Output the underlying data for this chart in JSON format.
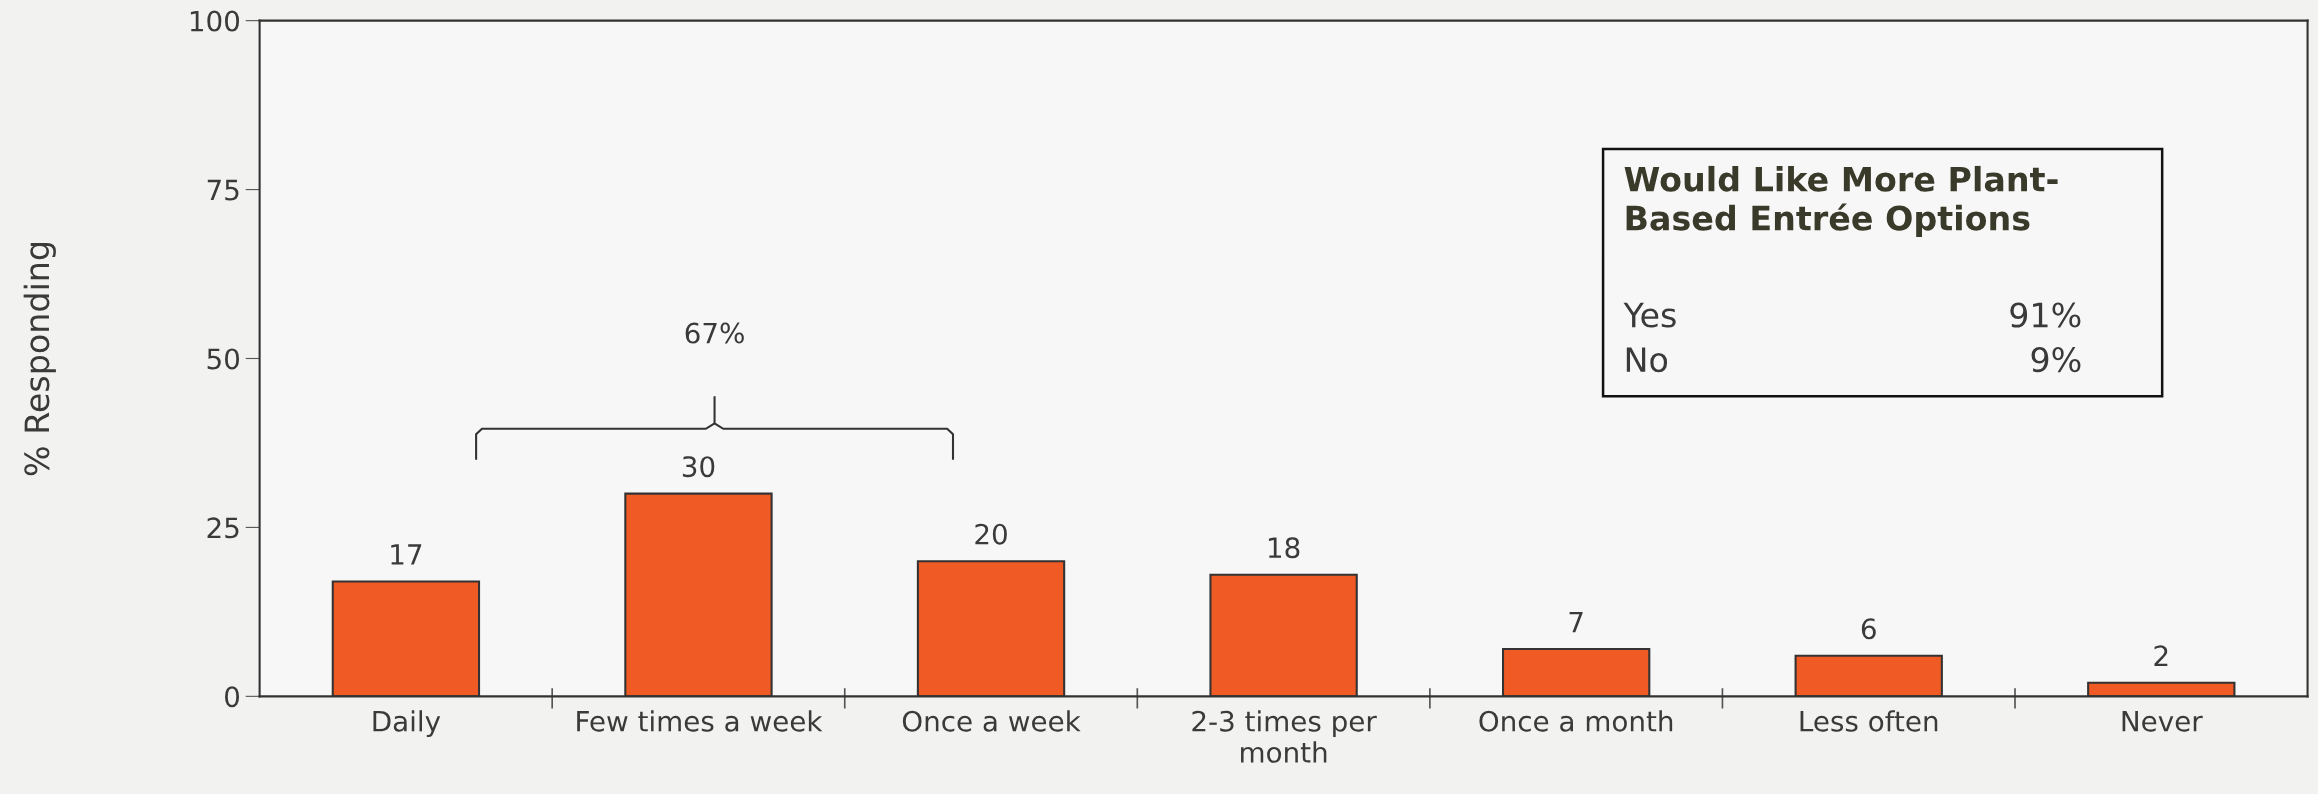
{
  "chart_data": {
    "type": "bar",
    "categories": [
      "Daily",
      "Few times a week",
      "Once a week",
      "2-3 times per\nmonth",
      "Once a month",
      "Less often",
      "Never"
    ],
    "values": [
      17,
      30,
      20,
      18,
      7,
      6,
      2
    ],
    "color": "#f05a24",
    "ylabel": "% Responding",
    "ylim": [
      0,
      100
    ],
    "yticks": [
      0,
      25,
      50,
      75,
      100
    ],
    "data_labels": true,
    "grid": false,
    "annotations": [
      "67%",
      "Would Like More Plant-\nBased Entrée Options",
      "Yes",
      "91%",
      "No",
      "9%"
    ]
  }
}
